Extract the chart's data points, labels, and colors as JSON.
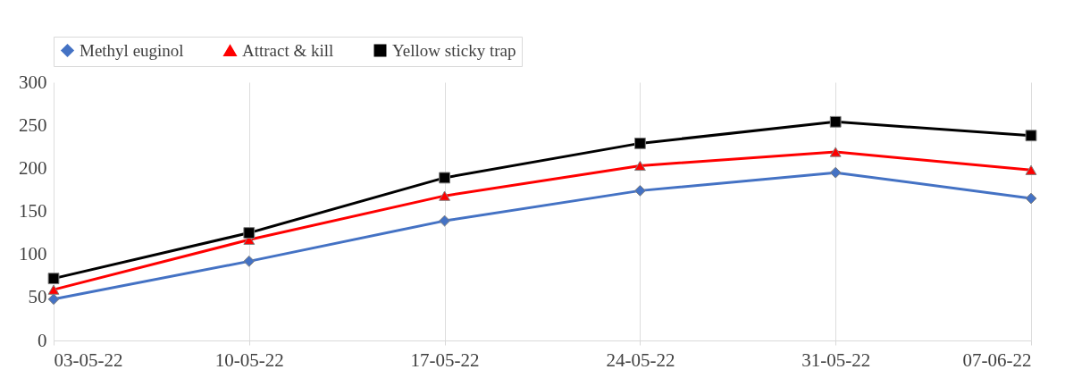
{
  "chart_data": {
    "type": "line",
    "categories": [
      "03-05-22",
      "10-05-22",
      "17-05-22",
      "24-05-22",
      "31-05-22",
      "07-06-22"
    ],
    "series": [
      {
        "name": "Methyl euginol",
        "color": "#4472c4",
        "marker": "diamond",
        "values": [
          48,
          92,
          139,
          174,
          195,
          165
        ]
      },
      {
        "name": "Attract & kill",
        "color": "#ff0000",
        "marker": "triangle",
        "values": [
          59,
          117,
          168,
          203,
          219,
          198
        ]
      },
      {
        "name": "Yellow sticky trap",
        "color": "#000000",
        "marker": "square",
        "values": [
          72,
          125,
          189,
          229,
          254,
          238
        ]
      }
    ],
    "ylim": [
      0,
      300
    ],
    "yticks": [
      0,
      50,
      100,
      150,
      200,
      250,
      300
    ],
    "grid": "x",
    "legend": "top",
    "line_style": "solid"
  }
}
